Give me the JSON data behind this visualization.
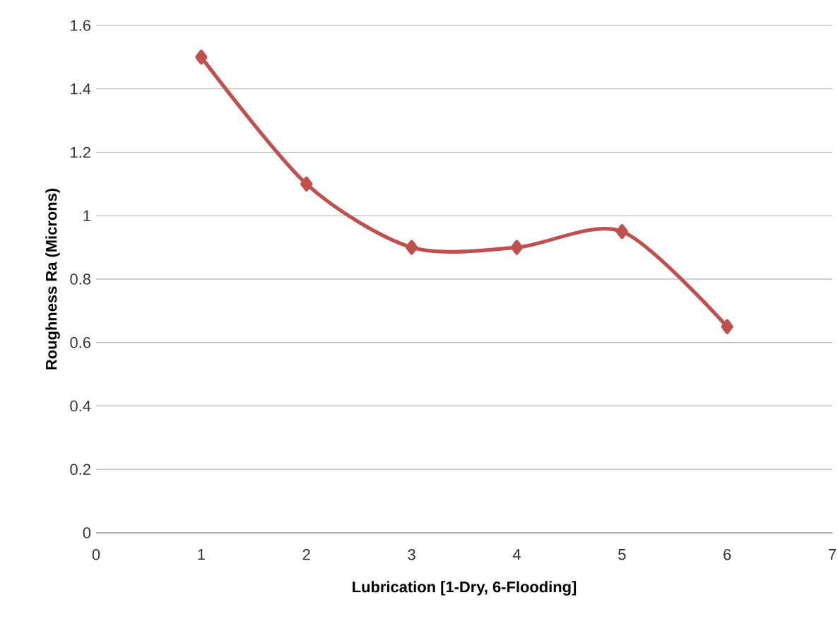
{
  "chart_data": {
    "type": "line",
    "xlabel": "Lubrication [1-Dry, 6-Flooding]",
    "ylabel": "Roughness Ra (Microns)",
    "x": [
      1,
      2,
      3,
      4,
      5,
      6
    ],
    "series": [
      {
        "color": "#c0504d",
        "values": [
          1.5,
          1.1,
          0.9,
          0.9,
          0.95,
          0.65
        ]
      }
    ],
    "xlim": [
      0,
      7
    ],
    "xticks": [
      0,
      1,
      2,
      3,
      4,
      5,
      6,
      7
    ],
    "ylim": [
      0,
      1.6
    ],
    "yticks": [
      0,
      0.2,
      0.4,
      0.6,
      0.8,
      1,
      1.2,
      1.4,
      1.6
    ],
    "grid": "y",
    "marker": "diamond",
    "line_style": "solid"
  }
}
